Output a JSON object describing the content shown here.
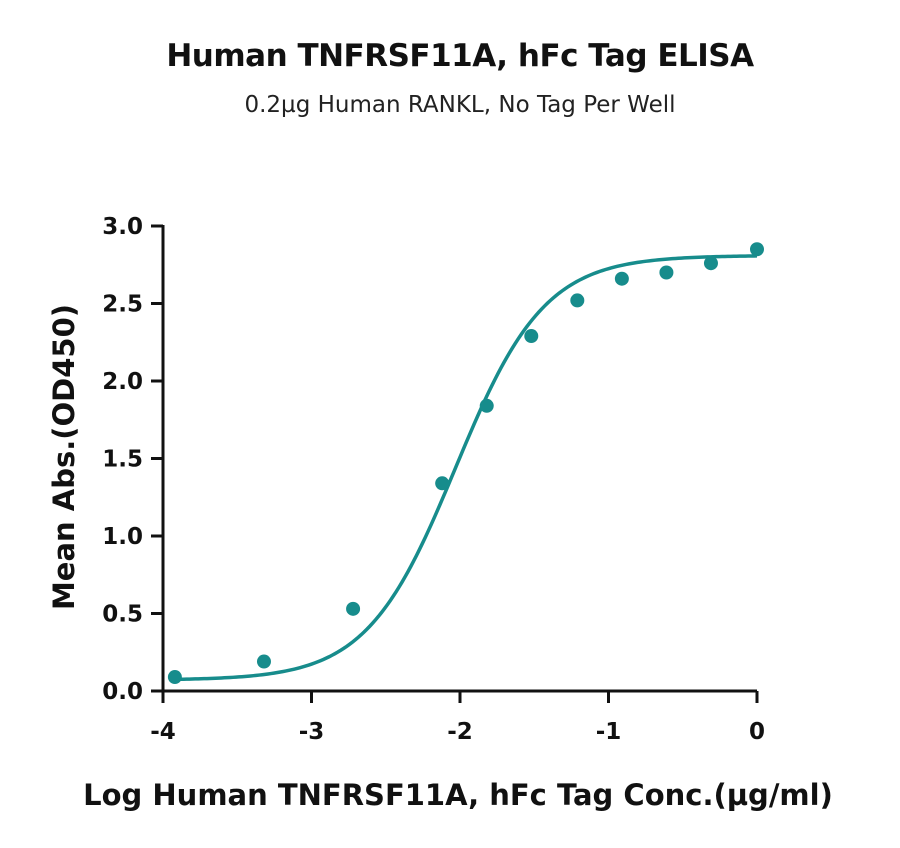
{
  "chart_data": {
    "type": "scatter",
    "title": "Human TNFRSF11A, hFc Tag ELISA",
    "subtitle": "0.2µg Human RANKL, No Tag Per Well",
    "xlabel": "Log Human TNFRSF11A, hFc Tag Conc.(µg/ml)",
    "ylabel": "Mean Abs.(OD450)",
    "xlim": [
      -4,
      0
    ],
    "ylim": [
      0,
      3
    ],
    "xticks": [
      "-4",
      "-3",
      "-2",
      "-1",
      "0"
    ],
    "yticks": [
      "0.0",
      "0.5",
      "1.0",
      "1.5",
      "2.0",
      "2.5",
      "3.0"
    ],
    "grid": false,
    "color": "#178c8c",
    "series": [
      {
        "x": [
          -3.92,
          -3.32,
          -2.72,
          -2.12,
          -1.82,
          -1.52,
          -1.21,
          -0.91,
          -0.61,
          -0.31,
          0.0
        ],
        "values": [
          0.09,
          0.19,
          0.53,
          1.34,
          1.84,
          2.29,
          2.52,
          2.66,
          2.7,
          2.76,
          2.85
        ]
      }
    ],
    "fit_curve": {
      "model": "4PL",
      "bottom": 0.07,
      "top": 2.81,
      "log_ec50": -2.03,
      "hill": 1.45
    }
  }
}
